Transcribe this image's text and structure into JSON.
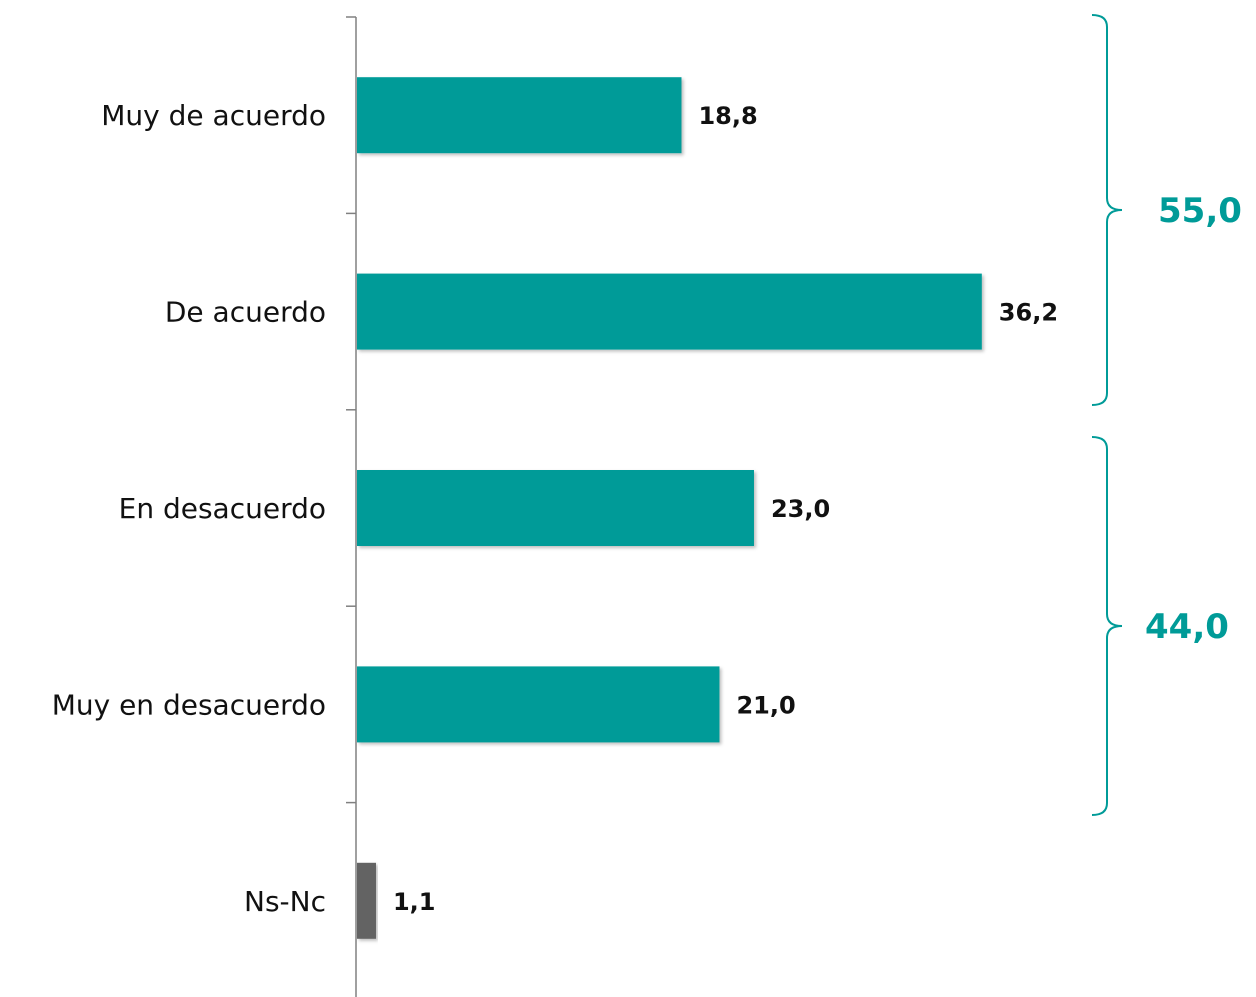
{
  "chart_data": {
    "type": "bar",
    "orientation": "horizontal",
    "categories": [
      "Muy de acuerdo",
      "De acuerdo",
      "En desacuerdo",
      "Muy en desacuerdo",
      "Ns-Nc"
    ],
    "values": [
      18.8,
      36.2,
      23.0,
      21.0,
      1.1
    ],
    "value_labels": [
      "18,8",
      "36,2",
      "23,0",
      "21,0",
      "1,1"
    ],
    "colors": [
      "#009b98",
      "#009b98",
      "#009b98",
      "#009b98",
      "#636363"
    ],
    "xlim": [
      0,
      40
    ],
    "grid": false,
    "legend": "none",
    "groups": [
      {
        "label": "55,0",
        "categories": [
          "Muy de acuerdo",
          "De acuerdo"
        ],
        "color": "#009b98"
      },
      {
        "label": "44,0",
        "categories": [
          "En desacuerdo",
          "Muy en desacuerdo"
        ],
        "color": "#009b98"
      }
    ]
  }
}
